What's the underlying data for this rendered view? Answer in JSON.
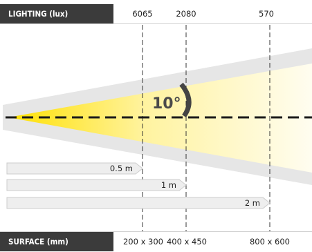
{
  "header": {
    "label": "LIGHTING (lux)",
    "values": [
      "6065",
      "2080",
      "570"
    ]
  },
  "footer": {
    "label": "SURFACE (mm)",
    "values": [
      "200 x 300",
      "400 x 450",
      "800 x 600"
    ]
  },
  "beam": {
    "angle_label": "10°"
  },
  "distances": [
    "0.5 m",
    "1 m",
    "2 m"
  ],
  "colors": {
    "label_bg": "#3b3b3b",
    "beam_core": "#ffe000",
    "beam_outer": "#e4e4e4"
  }
}
